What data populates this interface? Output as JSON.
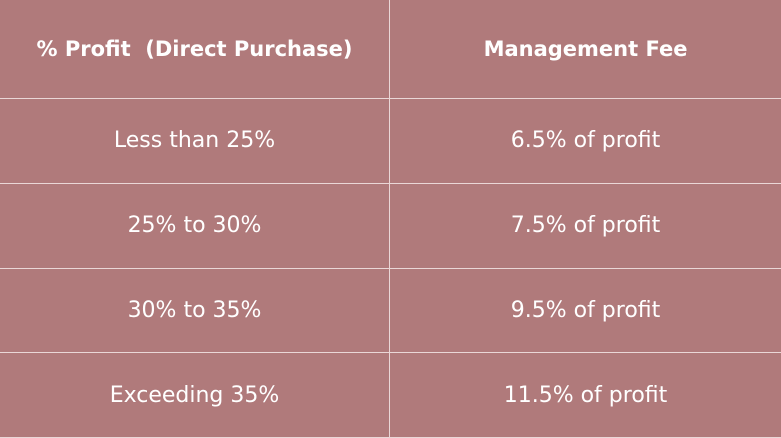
{
  "table": {
    "header": [
      "% Profit  (Direct Purchase)",
      "Management Fee"
    ],
    "rows": [
      [
        "Less than 25%",
        "6.5% of profit"
      ],
      [
        "25% to 30%",
        "7.5% of profit"
      ],
      [
        "30% to 35%",
        "9.5% of profit"
      ],
      [
        "Exceeding 35%",
        "11.5% of profit"
      ]
    ]
  }
}
